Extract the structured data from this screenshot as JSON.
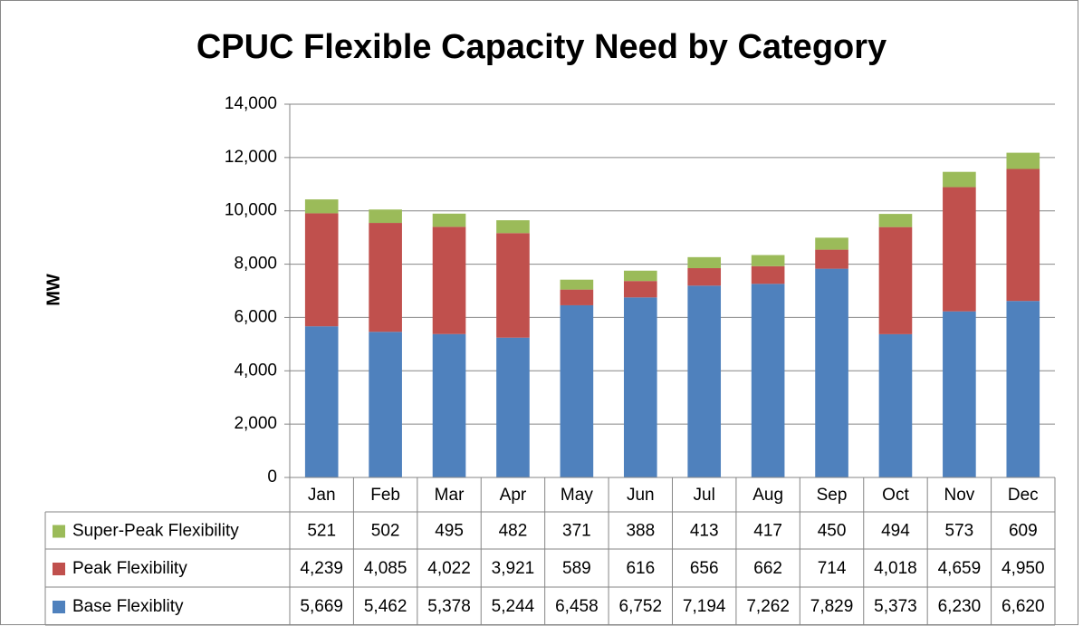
{
  "chart_data": {
    "type": "bar",
    "stacked": true,
    "title": "CPUC Flexible Capacity Need by Category",
    "y_label": "MW",
    "categories": [
      "Jan",
      "Feb",
      "Mar",
      "Apr",
      "May",
      "Jun",
      "Jul",
      "Aug",
      "Sep",
      "Oct",
      "Nov",
      "Dec"
    ],
    "series": [
      {
        "name": "Base Flexiblity",
        "color": "#4f81bd",
        "values": [
          5669,
          5462,
          5378,
          5244,
          6458,
          6752,
          7194,
          7262,
          7829,
          5373,
          6230,
          6620
        ],
        "value_labels": [
          "5,669",
          "5,462",
          "5,378",
          "5,244",
          "6,458",
          "6,752",
          "7,194",
          "7,262",
          "7,829",
          "5,373",
          "6,230",
          "6,620"
        ]
      },
      {
        "name": "Peak Flexibility",
        "color": "#c0504d",
        "values": [
          4239,
          4085,
          4022,
          3921,
          589,
          616,
          656,
          662,
          714,
          4018,
          4659,
          4950
        ],
        "value_labels": [
          "4,239",
          "4,085",
          "4,022",
          "3,921",
          "589",
          "616",
          "656",
          "662",
          "714",
          "4,018",
          "4,659",
          "4,950"
        ]
      },
      {
        "name": "Super-Peak Flexibility",
        "color": "#9bbb59",
        "values": [
          521,
          502,
          495,
          482,
          371,
          388,
          413,
          417,
          450,
          494,
          573,
          609
        ],
        "value_labels": [
          "521",
          "502",
          "495",
          "482",
          "371",
          "388",
          "413",
          "417",
          "450",
          "494",
          "573",
          "609"
        ]
      }
    ],
    "ylim": [
      0,
      14000
    ],
    "yticks": [
      0,
      {
        "value": 2000,
        "label": "2,000"
      },
      {
        "value": 4000,
        "label": "4,000"
      },
      {
        "value": 6000,
        "label": "6,000"
      },
      {
        "value": 8000,
        "label": "8,000"
      },
      {
        "value": 10000,
        "label": "10,000"
      },
      {
        "value": 12000,
        "label": "12,000"
      },
      {
        "value": 14000,
        "label": "14,000"
      }
    ],
    "grid": true
  }
}
